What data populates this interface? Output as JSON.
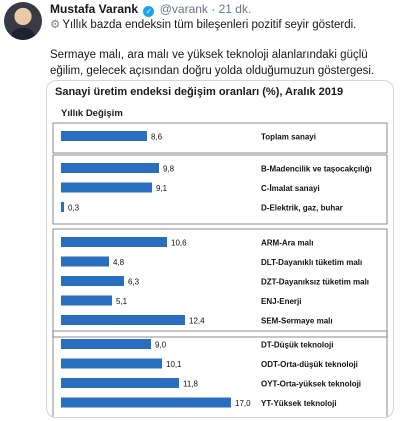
{
  "tweet": {
    "name": "Mustafa Varank",
    "handle": "@varank",
    "dot": "·",
    "time": "21 dk.",
    "line1": "Yıllık bazda endeksin tüm bileşenleri pozitif seyir gösterdi.",
    "line2": "Sermaye malı, ara malı ve yüksek teknoloji alanlarındaki güçlü eğilim, gelecek açısından doğru yolda olduğumuzun göstergesi."
  },
  "chart_data": {
    "type": "bar",
    "orientation": "horizontal",
    "title": "Sanayi üretim endeksi değişim oranları (%), Aralık 2019",
    "ylabel": "Yıllık Değişim",
    "bar_color": "#2a6fbf",
    "groups": [
      {
        "categories": [
          "Toplam sanayi"
        ],
        "values": [
          8.6
        ],
        "labels": [
          "8,6"
        ]
      },
      {
        "categories": [
          "B-Madencilik ve taşocakçılığı",
          "C-İmalat sanayi",
          "D-Elektrik, gaz, buhar"
        ],
        "values": [
          9.8,
          9.1,
          0.3
        ],
        "labels": [
          "9,8",
          "9,1",
          "0,3"
        ]
      },
      {
        "categories": [
          "ARM-Ara malı",
          "DLT-Dayanıklı tüketim malı",
          "DZT-Dayanıksız tüketim malı",
          "ENJ-Enerji",
          "SEM-Sermaye malı"
        ],
        "values": [
          10.6,
          4.8,
          6.3,
          5.1,
          12.4
        ],
        "labels": [
          "10,6",
          "4,8",
          "6,3",
          "5,1",
          "12,4"
        ]
      },
      {
        "categories": [
          "DT-Düşük teknoloji",
          "ODT-Orta-düşük teknoloji",
          "OYT-Orta-yüksek teknoloji",
          "YT-Yüksek teknoloji"
        ],
        "values": [
          9.0,
          10.1,
          11.8,
          17.0
        ],
        "labels": [
          "9,0",
          "10,1",
          "11,8",
          "17,0"
        ]
      }
    ],
    "xlim": [
      0,
      17
    ]
  }
}
